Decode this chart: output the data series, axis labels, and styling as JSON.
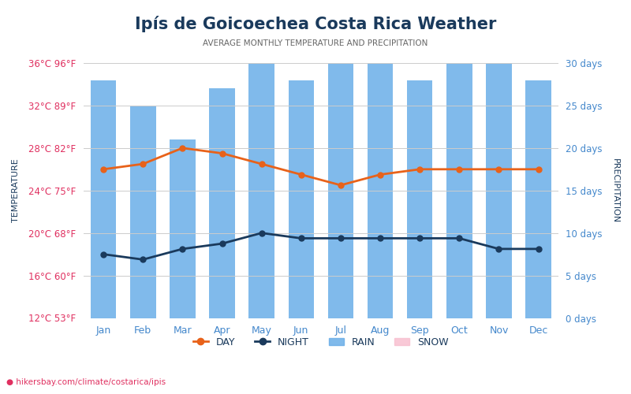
{
  "title": "Ipís de Goicoechea Costa Rica Weather",
  "subtitle": "AVERAGE MONTHLY TEMPERATURE AND PRECIPITATION",
  "months": [
    "Jan",
    "Feb",
    "Mar",
    "Apr",
    "May",
    "Jun",
    "Jul",
    "Aug",
    "Sep",
    "Oct",
    "Nov",
    "Dec"
  ],
  "day_temps": [
    26.0,
    26.5,
    28.0,
    27.5,
    26.5,
    25.5,
    24.5,
    25.5,
    26.0,
    26.0,
    26.0,
    26.0
  ],
  "night_temps": [
    18.0,
    17.5,
    18.5,
    19.0,
    20.0,
    19.5,
    19.5,
    19.5,
    19.5,
    19.5,
    18.5,
    18.5
  ],
  "rain_days": [
    28,
    25,
    21,
    27,
    30,
    28,
    30,
    30,
    28,
    30,
    30,
    28
  ],
  "ylim_temp": [
    12,
    36
  ],
  "ylim_rain": [
    0,
    30
  ],
  "temp_ticks": [
    12,
    16,
    20,
    24,
    28,
    32,
    36
  ],
  "temp_tick_labels_c": [
    "12°C",
    "16°C",
    "20°C",
    "24°C",
    "28°C",
    "32°C",
    "36°C"
  ],
  "temp_tick_labels_f": [
    "53°F",
    "60°F",
    "68°F",
    "75°F",
    "82°F",
    "89°F",
    "96°F"
  ],
  "rain_ticks": [
    0,
    5,
    10,
    15,
    20,
    25,
    30
  ],
  "rain_tick_labels": [
    "0 days",
    "5 days",
    "10 days",
    "15 days",
    "20 days",
    "25 days",
    "30 days"
  ],
  "bar_color": "#6aaee8",
  "day_color": "#e8621a",
  "night_color": "#1a3a5c",
  "title_color": "#1a3a5c",
  "subtitle_color": "#666666",
  "left_tick_color": "#e03060",
  "right_tick_color": "#4488cc",
  "watermark": "hikersbay.com/climate/costarica/ipis",
  "watermark_color": "#e03060",
  "background_color": "#ffffff"
}
